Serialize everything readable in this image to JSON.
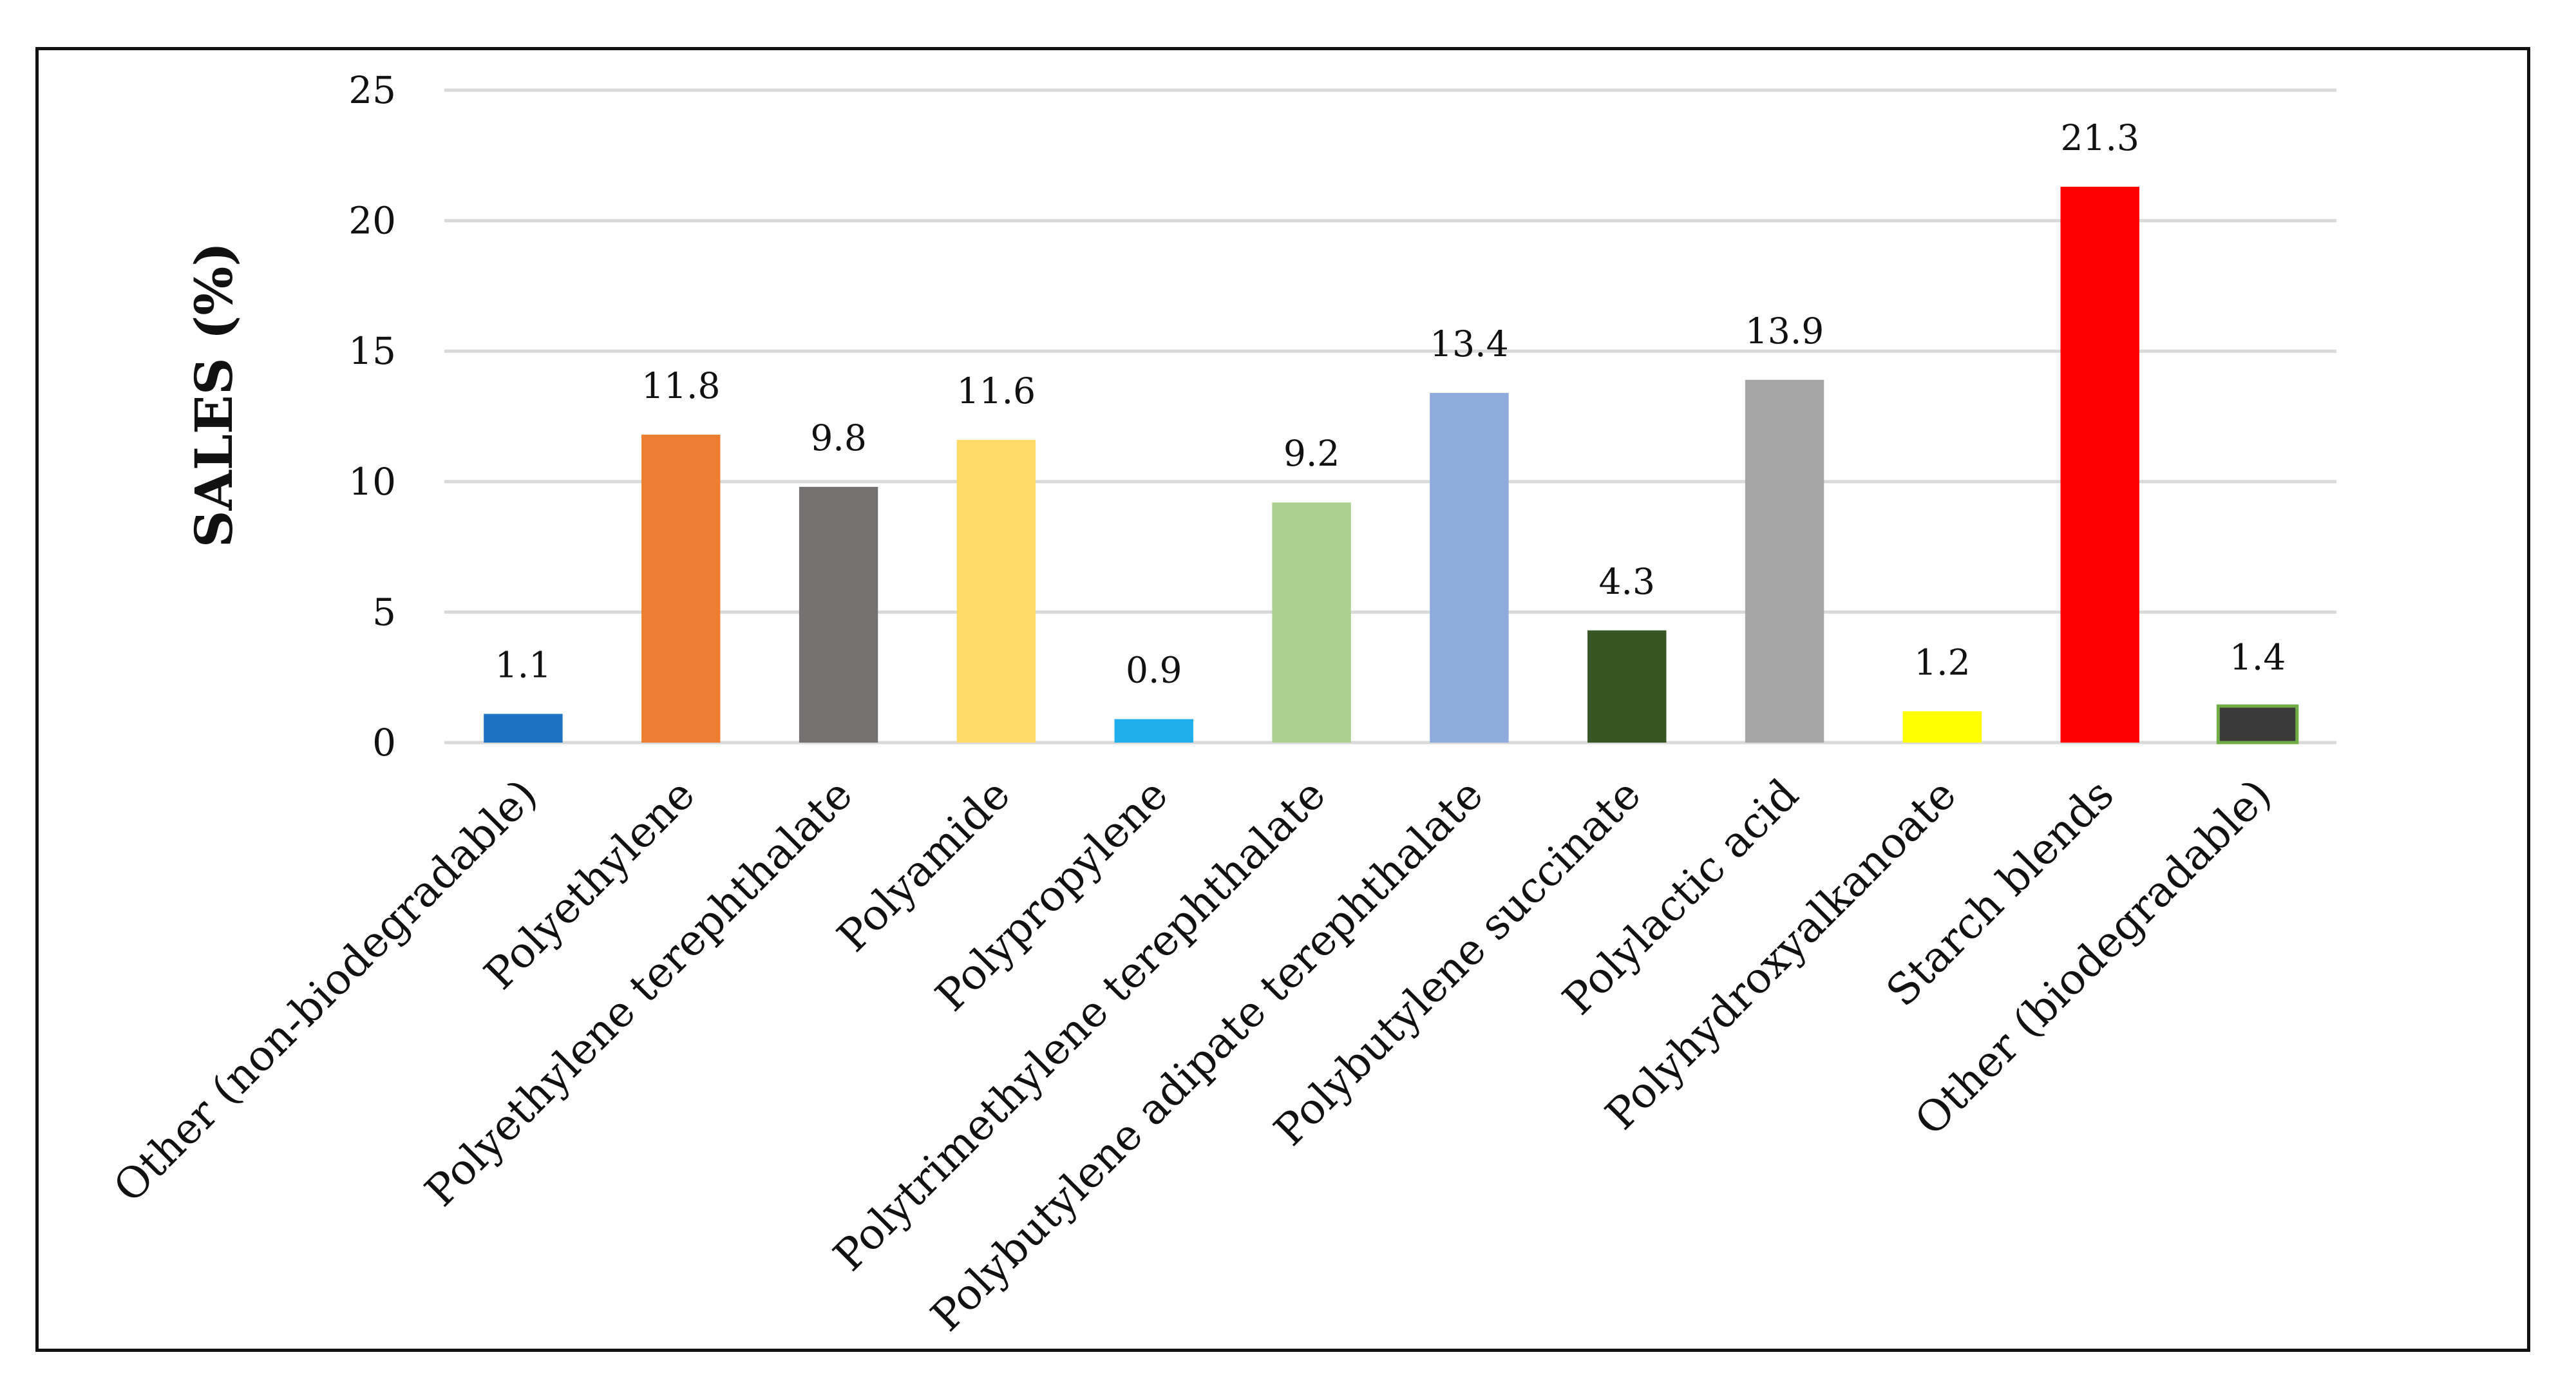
{
  "chart_data": {
    "type": "bar",
    "title": "",
    "xlabel": "",
    "ylabel": "SALES (%)",
    "ylim": [
      0,
      25
    ],
    "yticks": [
      0,
      5,
      10,
      15,
      20,
      25
    ],
    "grid": true,
    "legend": "none",
    "categories": [
      "Other (non-biodegradable)",
      "Polyethylene",
      "Polyethylene terephthalate",
      "Polyamide",
      "Polypropylene",
      "Polytrimethylene terephthalate",
      "Polybutylene adipate terephthalate",
      "Polybutylene succinate",
      "Polylactic acid",
      "Polyhydroxyalkanoate",
      "Starch blends",
      "Other (biodegradable)"
    ],
    "values": [
      1.1,
      11.8,
      9.8,
      11.6,
      0.9,
      9.2,
      13.4,
      4.3,
      13.9,
      1.2,
      21.3,
      1.4
    ],
    "value_labels": [
      "1.1",
      "11.8",
      "9.8",
      "11.6",
      "0.9",
      "9.2",
      "13.4",
      "4.3",
      "13.9",
      "1.2",
      "21.3",
      "1.4"
    ],
    "colors": [
      "#1f73c4",
      "#ed7d31",
      "#767171",
      "#ffd966",
      "#1fb0ec",
      "#a9d08e",
      "#8faadc",
      "#375623",
      "#a5a5a5",
      "#ffff00",
      "#ff0000",
      "#3a3a3a"
    ]
  }
}
